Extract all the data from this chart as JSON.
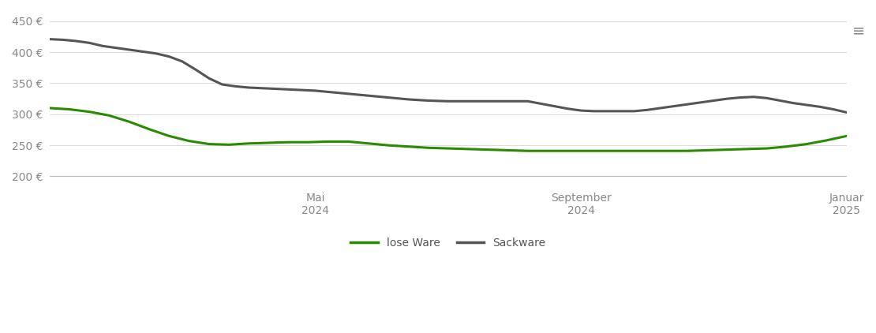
{
  "background_color": "#ffffff",
  "grid_color": "#dddddd",
  "lose_ware_color": "#2a8a00",
  "sackware_color": "#555555",
  "line_width": 2.2,
  "ylim": [
    185,
    465
  ],
  "yticks": [
    200,
    250,
    300,
    350,
    400,
    450
  ],
  "ytick_labels": [
    "200 €",
    "250 €",
    "300 €",
    "350 €",
    "400 €",
    "450 €"
  ],
  "xlim": [
    0,
    12
  ],
  "xticks": [
    4,
    8,
    12
  ],
  "xtick_labels": [
    "Mai\n2024",
    "September\n2024",
    "Januar\n2025"
  ],
  "lose_ware_x": [
    0.0,
    0.3,
    0.6,
    0.9,
    1.2,
    1.5,
    1.8,
    2.1,
    2.4,
    2.7,
    3.0,
    3.3,
    3.6,
    3.9,
    4.2,
    4.5,
    4.8,
    5.1,
    5.4,
    5.7,
    6.0,
    6.3,
    6.6,
    6.9,
    7.2,
    7.5,
    7.8,
    8.1,
    8.4,
    8.7,
    9.0,
    9.3,
    9.6,
    9.9,
    10.2,
    10.5,
    10.8,
    11.1,
    11.4,
    11.7,
    12.0
  ],
  "lose_ware_y": [
    310,
    308,
    304,
    298,
    288,
    276,
    265,
    257,
    252,
    251,
    253,
    254,
    255,
    255,
    256,
    256,
    253,
    250,
    248,
    246,
    245,
    244,
    243,
    242,
    241,
    241,
    241,
    241,
    241,
    241,
    241,
    241,
    241,
    242,
    243,
    244,
    245,
    248,
    252,
    258,
    265
  ],
  "sackware_x": [
    0.0,
    0.2,
    0.4,
    0.6,
    0.8,
    1.0,
    1.2,
    1.4,
    1.6,
    1.8,
    2.0,
    2.2,
    2.4,
    2.6,
    2.8,
    3.0,
    3.2,
    3.4,
    3.6,
    3.8,
    4.0,
    4.2,
    4.5,
    4.8,
    5.1,
    5.4,
    5.7,
    6.0,
    6.3,
    6.6,
    6.9,
    7.2,
    7.4,
    7.6,
    7.8,
    8.0,
    8.2,
    8.4,
    8.6,
    8.8,
    9.0,
    9.2,
    9.4,
    9.6,
    9.8,
    10.0,
    10.2,
    10.4,
    10.6,
    10.8,
    11.0,
    11.2,
    11.4,
    11.6,
    11.8,
    12.0
  ],
  "sackware_y": [
    421,
    420,
    418,
    415,
    410,
    407,
    404,
    401,
    398,
    393,
    385,
    372,
    358,
    348,
    345,
    343,
    342,
    341,
    340,
    339,
    338,
    336,
    333,
    330,
    327,
    324,
    322,
    321,
    321,
    321,
    321,
    321,
    317,
    313,
    309,
    306,
    305,
    305,
    305,
    305,
    307,
    310,
    313,
    316,
    319,
    322,
    325,
    327,
    328,
    326,
    322,
    318,
    315,
    312,
    308,
    303
  ]
}
